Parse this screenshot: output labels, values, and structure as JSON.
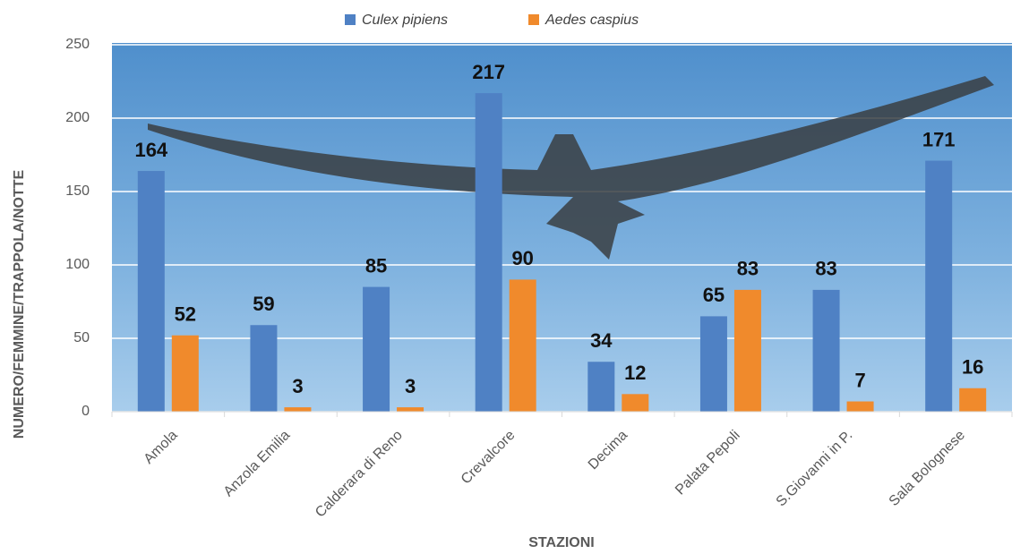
{
  "chart_data": {
    "type": "bar",
    "xlabel": "STAZIONI",
    "ylabel": "NUMERO/FEMMINE/TRAPPOLA/NOTTE",
    "categories": [
      "Amola",
      "Anzola Emilia",
      "Calderara di Reno",
      "Crevalcore",
      "Decima",
      "Palata Pepoli",
      "S.Giovanni in P.",
      "Sala Bolognese"
    ],
    "series": [
      {
        "name": "Culex pipiens",
        "color": "#4f81c4",
        "values": [
          164,
          59,
          85,
          217,
          34,
          65,
          83,
          171
        ]
      },
      {
        "name": "Aedes caspius",
        "color": "#f08a2c",
        "values": [
          52,
          3,
          3,
          90,
          12,
          83,
          7,
          16
        ]
      }
    ],
    "ylim": [
      0,
      250
    ],
    "yticks": [
      0,
      50,
      100,
      150,
      200,
      250
    ],
    "grid": true
  }
}
